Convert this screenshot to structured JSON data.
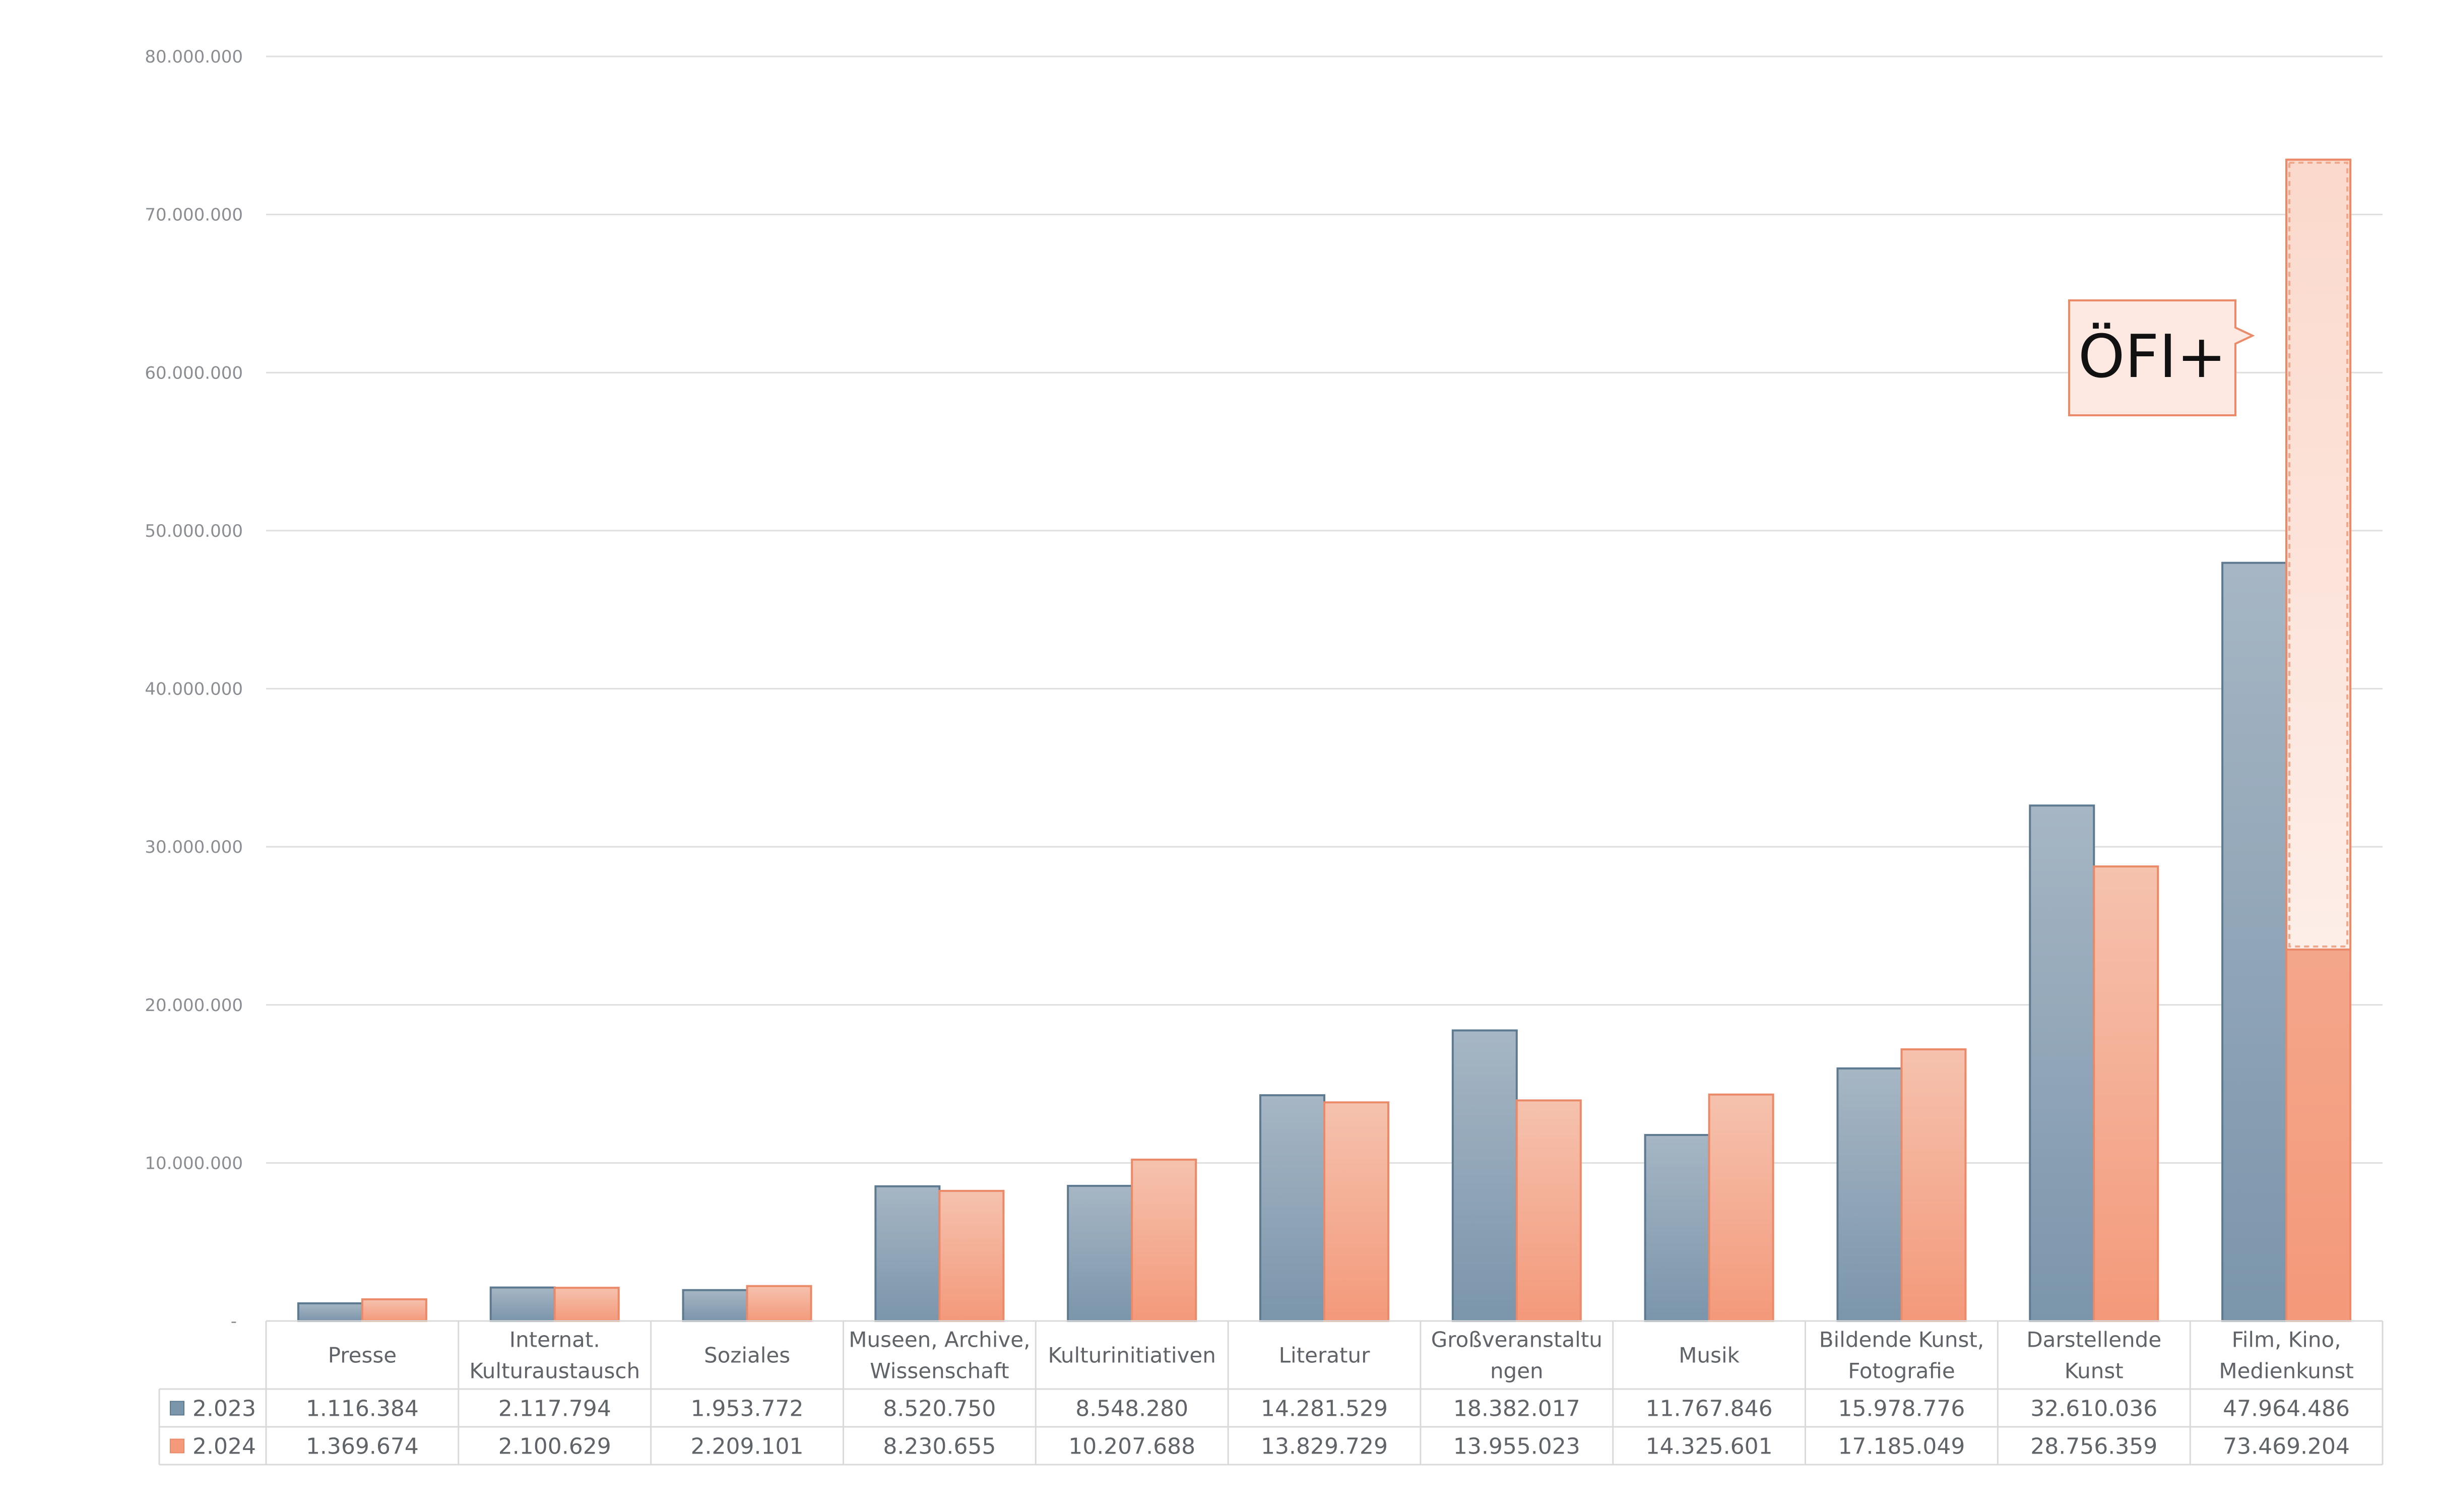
{
  "chart_data": {
    "type": "bar",
    "categories": [
      "Presse",
      "Internat. Kulturaustausch",
      "Soziales",
      "Museen, Archive, Wissenschaft",
      "Kulturinitiativen",
      "Literatur",
      "Großveranstaltungen",
      "Musik",
      "Bildende Kunst, Fotografie",
      "Darstellende Kunst",
      "Film, Kino, Medienkunst"
    ],
    "category_label_lines": [
      [
        "Presse"
      ],
      [
        "Internat.",
        "Kulturaustausch"
      ],
      [
        "Soziales"
      ],
      [
        "Museen, Archive,",
        "Wissenschaft"
      ],
      [
        "Kulturinitiativen"
      ],
      [
        "Literatur"
      ],
      [
        "Großveranstaltu",
        "ngen"
      ],
      [
        "Musik"
      ],
      [
        "Bildende Kunst,",
        "Fotografie"
      ],
      [
        "Darstellende",
        "Kunst"
      ],
      [
        "Film, Kino,",
        "Medienkunst"
      ]
    ],
    "series": [
      {
        "name": "2.023",
        "values": [
          1116384,
          2117794,
          1953772,
          8520750,
          8548280,
          14281529,
          18382017,
          11767846,
          15978776,
          32610036,
          47964486
        ],
        "labels": [
          "1.116.384",
          "2.117.794",
          "1.953.772",
          "8.520.750",
          "8.548.280",
          "14.281.529",
          "18.382.017",
          "11.767.846",
          "15.978.776",
          "32.610.036",
          "47.964.486"
        ],
        "color": "#7b95ab",
        "color_light": "#a6b6c4",
        "stroke": "#5d7a91"
      },
      {
        "name": "2.024",
        "values": [
          1369674,
          2100629,
          2209101,
          8230655,
          10207688,
          13829729,
          13955023,
          14325601,
          17185049,
          28756359,
          73469204
        ],
        "labels": [
          "1.369.674",
          "2.100.629",
          "2.209.101",
          "8.230.655",
          "10.207.688",
          "13.829.729",
          "13.955.023",
          "14.325.601",
          "17.185.049",
          "28.756.359",
          "73.469.204"
        ],
        "color": "#f4997a",
        "color_light": "#f5c2ae",
        "stroke": "#eb8a68"
      }
    ],
    "highlight": {
      "category": "Film, Kino, Medienkunst",
      "series": "2.024",
      "from": 23500000,
      "to": 73469204,
      "label": "ÖFI+"
    },
    "ylim": [
      0,
      80000000
    ],
    "yticks": [
      0,
      10000000,
      20000000,
      30000000,
      40000000,
      50000000,
      60000000,
      70000000,
      80000000
    ],
    "ytick_labels": [
      "-",
      "10.000.000",
      "20.000.000",
      "30.000.000",
      "40.000.000",
      "50.000.000",
      "60.000.000",
      "70.000.000",
      "80.000.000"
    ],
    "grid": true,
    "legend": "data-table",
    "title": "",
    "xlabel": "",
    "ylabel": ""
  }
}
